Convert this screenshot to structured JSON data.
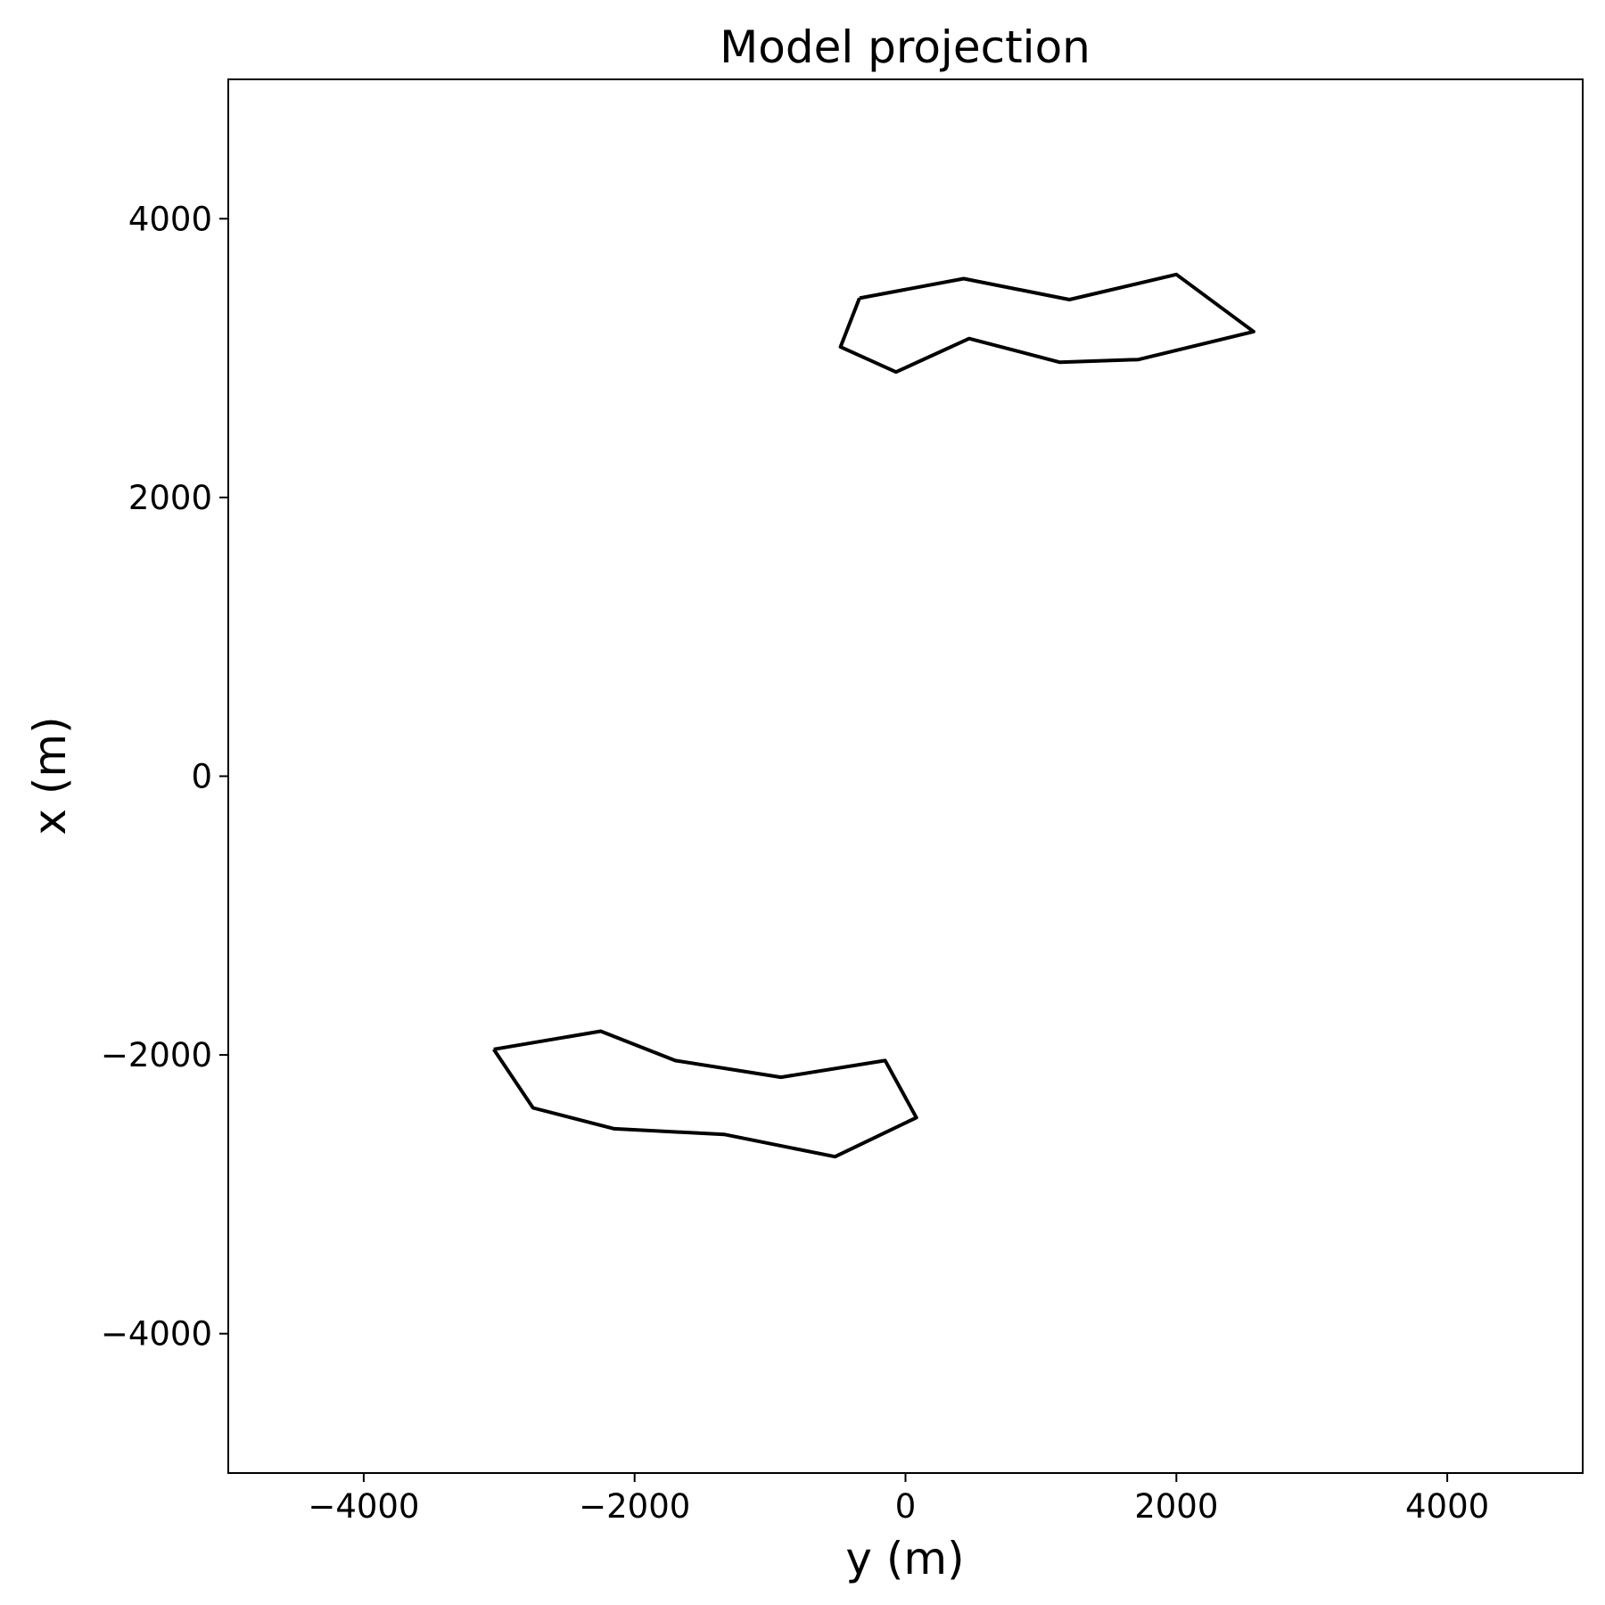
{
  "chart_data": {
    "type": "line",
    "title": "Model projection",
    "xlabel": "y (m)",
    "ylabel": "x (m)",
    "xlim": [
      -5000,
      5000
    ],
    "ylim": [
      -5000,
      5000
    ],
    "xticks": [
      -4000,
      -2000,
      0,
      2000,
      4000
    ],
    "yticks": [
      -4000,
      -2000,
      0,
      2000,
      4000
    ],
    "xtick_labels": [
      "−4000",
      "−2000",
      "0",
      "2000",
      "4000"
    ],
    "ytick_labels": [
      "−4000",
      "−2000",
      "0",
      "2000",
      "4000"
    ],
    "grid": false,
    "line_color": "#000000",
    "series": [
      {
        "points": [
          [
            -340,
            3430
          ],
          [
            430,
            3570
          ],
          [
            1210,
            3420
          ],
          [
            2000,
            3600
          ],
          [
            2570,
            3190
          ],
          [
            1720,
            2990
          ],
          [
            1140,
            2970
          ],
          [
            470,
            3140
          ],
          [
            -70,
            2900
          ],
          [
            -480,
            3080
          ],
          [
            -340,
            3430
          ]
        ]
      },
      {
        "points": [
          [
            -3040,
            -1960
          ],
          [
            -2250,
            -1830
          ],
          [
            -1700,
            -2040
          ],
          [
            -920,
            -2160
          ],
          [
            -150,
            -2040
          ],
          [
            80,
            -2450
          ],
          [
            -520,
            -2730
          ],
          [
            -1340,
            -2570
          ],
          [
            -2150,
            -2530
          ],
          [
            -2750,
            -2380
          ],
          [
            -3040,
            -1960
          ]
        ]
      }
    ]
  }
}
